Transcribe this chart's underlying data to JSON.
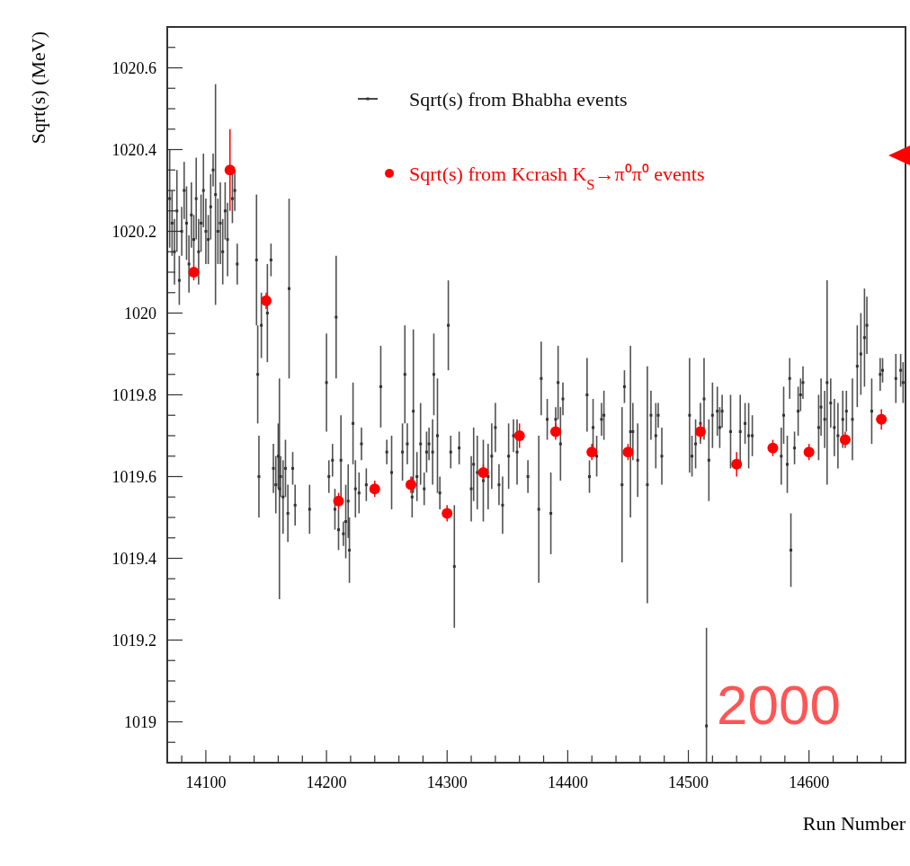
{
  "chart_data": {
    "type": "scatter",
    "xlabel": "Run Number",
    "ylabel": "Sqrt(s) (MeV)",
    "xlim": [
      14068,
      14680
    ],
    "ylim": [
      1018.9,
      1020.7
    ],
    "xticks": [
      {
        "value": 14080,
        "label": null
      },
      14100,
      {
        "value": 14120,
        "label": null
      },
      {
        "value": 14140,
        "label": null
      },
      {
        "value": 14160,
        "label": null
      },
      {
        "value": 14180,
        "label": null
      },
      14200,
      {
        "value": 14220,
        "label": null
      },
      {
        "value": 14240,
        "label": null
      },
      {
        "value": 14260,
        "label": null
      },
      {
        "value": 14280,
        "label": null
      },
      14300,
      {
        "value": 14320,
        "label": null
      },
      {
        "value": 14340,
        "label": null
      },
      {
        "value": 14360,
        "label": null
      },
      {
        "value": 14380,
        "label": null
      },
      14400,
      {
        "value": 14420,
        "label": null
      },
      {
        "value": 14440,
        "label": null
      },
      {
        "value": 14460,
        "label": null
      },
      {
        "value": 14480,
        "label": null
      },
      14500,
      {
        "value": 14520,
        "label": null
      },
      {
        "value": 14540,
        "label": null
      },
      {
        "value": 14560,
        "label": null
      },
      {
        "value": 14580,
        "label": null
      },
      14600,
      {
        "value": 14620,
        "label": null
      },
      {
        "value": 14640,
        "label": null
      },
      {
        "value": 14660,
        "label": null
      }
    ],
    "yticks": [
      {
        "value": 1018.95,
        "label": null
      },
      1019,
      {
        "value": 1019.05,
        "label": null
      },
      {
        "value": 1019.1,
        "label": null
      },
      {
        "value": 1019.15,
        "label": null
      },
      1019.2,
      {
        "value": 1019.25,
        "label": null
      },
      {
        "value": 1019.3,
        "label": null
      },
      {
        "value": 1019.35,
        "label": null
      },
      1019.4,
      {
        "value": 1019.45,
        "label": null
      },
      {
        "value": 1019.5,
        "label": null
      },
      {
        "value": 1019.55,
        "label": null
      },
      1019.6,
      {
        "value": 1019.65,
        "label": null
      },
      {
        "value": 1019.7,
        "label": null
      },
      {
        "value": 1019.75,
        "label": null
      },
      1019.8,
      {
        "value": 1019.85,
        "label": null
      },
      {
        "value": 1019.9,
        "label": null
      },
      {
        "value": 1019.95,
        "label": null
      },
      1020,
      {
        "value": 1020.05,
        "label": null
      },
      {
        "value": 1020.1,
        "label": null
      },
      {
        "value": 1020.15,
        "label": null
      },
      1020.2,
      {
        "value": 1020.25,
        "label": null
      },
      {
        "value": 1020.3,
        "label": null
      },
      {
        "value": 1020.35,
        "label": null
      },
      1020.4,
      {
        "value": 1020.45,
        "label": null
      },
      {
        "value": 1020.5,
        "label": null
      },
      {
        "value": 1020.55,
        "label": null
      },
      1020.6,
      {
        "value": 1020.65,
        "label": null
      }
    ],
    "grid": false,
    "legend": "top right",
    "annotations": [
      "2000"
    ],
    "series": [
      {
        "name": "Sqrt(s) from Bhabha events",
        "color": "#333333",
        "marker": "square",
        "x": [
          14070,
          14072,
          14074,
          14076,
          14078,
          14080,
          14082,
          14084,
          14086,
          14088,
          14090,
          14092,
          14094,
          14096,
          14098,
          14100,
          14102,
          14104,
          14106,
          14108,
          14110,
          14112,
          14114,
          14116,
          14118,
          14122,
          14124,
          14126,
          14142,
          14143,
          14144,
          14146,
          14151,
          14154,
          14156,
          14158,
          14160,
          14161,
          14162,
          14164,
          14166,
          14168,
          14169,
          14172,
          14174,
          14186,
          14200,
          14202,
          14205,
          14207,
          14208,
          14210,
          14212,
          14214,
          14216,
          14218,
          14219,
          14222,
          14224,
          14227,
          14229,
          14233,
          14245,
          14250,
          14254,
          14263,
          14265,
          14267,
          14271,
          14272,
          14275,
          14278,
          14281,
          14283,
          14285,
          14288,
          14289,
          14292,
          14294,
          14301,
          14303,
          14306,
          14310,
          14320,
          14322,
          14325,
          14330,
          14334,
          14337,
          14340,
          14343,
          14346,
          14351,
          14355,
          14358,
          14367,
          14376,
          14378,
          14383,
          14386,
          14390,
          14392,
          14394,
          14396,
          14416,
          14418,
          14421,
          14424,
          14428,
          14430,
          14445,
          14447,
          14452,
          14454,
          14458,
          14466,
          14469,
          14473,
          14475,
          14478,
          14501,
          14503,
          14506,
          14510,
          14513,
          14515,
          14517,
          14520,
          14524,
          14526,
          14528,
          14535,
          14543,
          14547,
          14550,
          14553,
          14577,
          14579,
          14582,
          14584,
          14585,
          14588,
          14591,
          14593,
          14595,
          14608,
          14610,
          14613,
          14615,
          14618,
          14621,
          14624,
          14628,
          14631,
          14636,
          14640,
          14643,
          14646,
          14648,
          14652,
          14659,
          14661,
          14672,
          14676,
          14678
        ],
        "values": [
          1020.28,
          1020.22,
          1020.15,
          1020.25,
          1020.08,
          1020.2,
          1020.3,
          1020.22,
          1020.12,
          1020.24,
          1020.18,
          1020.28,
          1020.15,
          1020.22,
          1020.3,
          1020.2,
          1020.18,
          1020.26,
          1020.35,
          1020.29,
          1020.2,
          1020.22,
          1020.15,
          1020.25,
          1020.18,
          1020.28,
          1020.3,
          1020.12,
          1020.13,
          1019.85,
          1019.6,
          1019.97,
          1020,
          1020.13,
          1019.62,
          1019.58,
          1019.65,
          1019.57,
          1019.6,
          1019.55,
          1019.62,
          1019.51,
          1020.06,
          1019.62,
          1019.53,
          1019.52,
          1019.83,
          1019.6,
          1019.64,
          1019.52,
          1019.99,
          1019.47,
          1019.64,
          1019.46,
          1019.49,
          1019.54,
          1019.42,
          1019.73,
          1019.57,
          1019.56,
          1019.68,
          1019.58,
          1019.82,
          1019.66,
          1019.61,
          1019.66,
          1019.85,
          1019.68,
          1019.55,
          1019.76,
          1019.6,
          1019.68,
          1019.57,
          1019.66,
          1019.68,
          1019.66,
          1019.85,
          1019.7,
          1019.56,
          1019.97,
          1019.66,
          1019.38,
          1019.67,
          1019.57,
          1019.63,
          1019.61,
          1019.59,
          1019.6,
          1019.65,
          1019.72,
          1019.58,
          1019.53,
          1019.65,
          1019.7,
          1019.66,
          1019.6,
          1019.52,
          1019.84,
          1019.74,
          1019.51,
          1019.74,
          1019.83,
          1019.68,
          1019.79,
          1019.8,
          1019.6,
          1019.72,
          1019.65,
          1019.74,
          1019.75,
          1019.58,
          1019.82,
          1019.71,
          1019.71,
          1019.64,
          1019.58,
          1019.75,
          1019.7,
          1019.75,
          1019.65,
          1019.75,
          1019.65,
          1019.68,
          1019.73,
          1019.79,
          1018.99,
          1019.64,
          1019.75,
          1019.76,
          1019.72,
          1019.76,
          1019.71,
          1019.71,
          1019.73,
          1019.7,
          1019.7,
          1019.65,
          1019.75,
          1019.63,
          1019.84,
          1019.42,
          1019.67,
          1019.76,
          1019.8,
          1019.83,
          1019.72,
          1019.77,
          1019.74,
          1019.83,
          1019.78,
          1019.72,
          1019.7,
          1019.74,
          1019.76,
          1019.74,
          1019.87,
          1019.9,
          1019.94,
          1019.97,
          1019.76,
          1019.85,
          1019.86,
          1019.84,
          1019.86,
          1019.83
        ],
        "errors": [
          0.12,
          0.08,
          0.08,
          0.1,
          0.06,
          0.06,
          0.07,
          0.09,
          0.07,
          0.08,
          0.06,
          0.1,
          0.08,
          0.07,
          0.09,
          0.08,
          0.06,
          0.08,
          0.04,
          0.27,
          0.08,
          0.1,
          0.08,
          0.07,
          0.09,
          0.06,
          0.05,
          0.05,
          0.16,
          0.12,
          0.1,
          0.08,
          0.12,
          0.04,
          0.06,
          0.07,
          0.08,
          0.27,
          0.05,
          0.09,
          0.07,
          0.07,
          0.22,
          0.04,
          0.05,
          0.06,
          0.12,
          0.04,
          0.04,
          0.05,
          0.15,
          0.05,
          0.11,
          0.03,
          0.09,
          0.09,
          0.08,
          0.1,
          0.07,
          0.05,
          0.04,
          0.04,
          0.1,
          0.03,
          0.09,
          0.07,
          0.12,
          0.05,
          0.05,
          0.2,
          0.06,
          0.1,
          0.04,
          0.05,
          0.04,
          0.08,
          0.1,
          0.14,
          0.04,
          0.11,
          0.04,
          0.15,
          0.04,
          0.08,
          0.09,
          0.09,
          0.1,
          0.08,
          0.08,
          0.06,
          0.05,
          0.07,
          0.08,
          0.04,
          0.08,
          0.04,
          0.18,
          0.09,
          0.05,
          0.1,
          0.03,
          0.09,
          0.09,
          0.04,
          0.09,
          0.04,
          0.07,
          0.05,
          0.04,
          0.06,
          0.19,
          0.04,
          0.21,
          0.07,
          0.09,
          0.29,
          0.06,
          0.08,
          0.03,
          0.07,
          0.14,
          0.05,
          0.06,
          0.05,
          0.1,
          [
            1018.9,
            1019.23
          ],
          0.1,
          0.08,
          0.06,
          0.05,
          0.04,
          0.09,
          0.09,
          0.05,
          0.08,
          0.05,
          0.07,
          0.07,
          0.07,
          0.05,
          0.09,
          0.04,
          0.06,
          0.04,
          0.04,
          0.08,
          0.07,
          0.07,
          0.25,
          0.06,
          0.07,
          0.08,
          0.07,
          0.05,
          0.1,
          0.1,
          0.1,
          0.12,
          0.07,
          0.08,
          0.04,
          0.03,
          0.06,
          0.04,
          0.05
        ]
      },
      {
        "name": "Sqrt(s) from Kcrash K$_{S}$→π⁰π⁰ events",
        "color": "#ff0000",
        "marker": "circle",
        "x": [
          14090,
          14120,
          14150,
          14210,
          14240,
          14270,
          14300,
          14330,
          14360,
          14390,
          14420,
          14450,
          14510,
          14540,
          14570,
          14600,
          14630,
          14660
        ],
        "values": [
          1020.1,
          1020.35,
          1020.03,
          1019.54,
          1019.57,
          1019.58,
          1019.51,
          1019.61,
          1019.7,
          1019.71,
          1019.66,
          1019.66,
          1019.71,
          1019.63,
          1019.67,
          1019.66,
          1019.69,
          1019.74
        ],
        "errors": [
          0.02,
          0.1,
          0.02,
          0.02,
          0.02,
          0.02,
          0.02,
          0.02,
          0.03,
          0.02,
          0.02,
          0.02,
          0.02,
          0.03,
          0.02,
          0.02,
          0.02,
          0.025
        ]
      }
    ]
  }
}
